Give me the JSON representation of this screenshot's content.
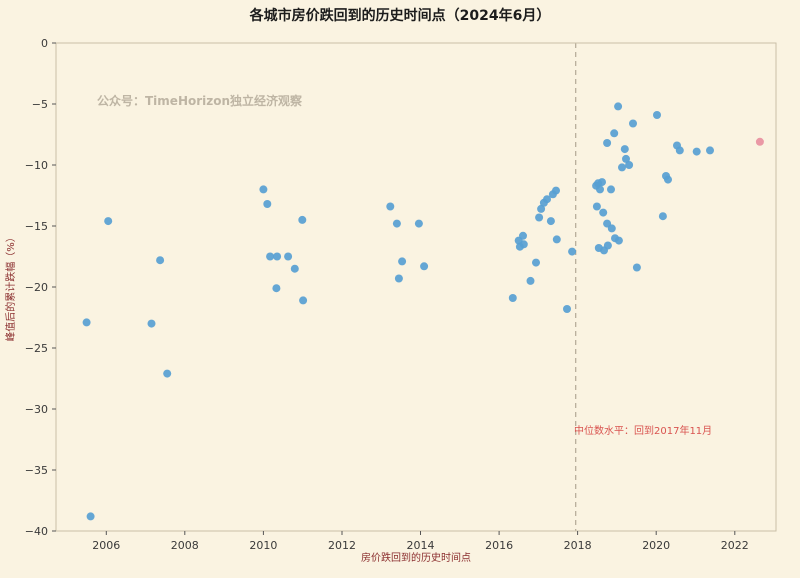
{
  "chart_data": {
    "type": "scatter",
    "title": "各城市房价跌回到的历史时间点（2024年6月）",
    "xlabel": "房价跌回到的历史时间点",
    "ylabel": "峰值后的累计跌幅（%）",
    "watermark": "公众号：TimeHorizon独立经济观察",
    "median_annotation": "中位数水平：回到2017年11月",
    "median_line_x": 2017.95,
    "xlim": [
      2004.72,
      2023.05
    ],
    "ylim": [
      -40,
      0
    ],
    "xticks": [
      2006,
      2008,
      2010,
      2012,
      2014,
      2016,
      2018,
      2020,
      2022
    ],
    "xtick_labels": [
      "2006",
      "2008",
      "2010",
      "2012",
      "2014",
      "2016",
      "2018",
      "2020",
      "2022"
    ],
    "yticks": [
      0,
      -5,
      -10,
      -15,
      -20,
      -25,
      -30,
      -35,
      -40
    ],
    "ytick_labels": [
      "0",
      "−5",
      "−10",
      "−15",
      "−20",
      "−25",
      "−30",
      "−35",
      "−40"
    ],
    "grid": false,
    "legend": "none",
    "colors": {
      "background": "#faf3e1",
      "point_blue": "#57a0d3",
      "point_pink": "#e8909f",
      "median_line": "#b3a996",
      "spine": "#c9bfa8",
      "annotation_red": "#d9534f"
    },
    "series": [
      {
        "name": "cities",
        "color": "#57a0d3",
        "points": [
          [
            2005.5,
            -22.9
          ],
          [
            2005.6,
            -38.8
          ],
          [
            2006.05,
            -14.6
          ],
          [
            2007.15,
            -23.0
          ],
          [
            2007.37,
            -17.8
          ],
          [
            2007.55,
            -27.1
          ],
          [
            2010.0,
            -12.0
          ],
          [
            2010.1,
            -13.2
          ],
          [
            2010.17,
            -17.5
          ],
          [
            2010.33,
            -20.1
          ],
          [
            2010.35,
            -17.5
          ],
          [
            2010.63,
            -17.5
          ],
          [
            2010.8,
            -18.5
          ],
          [
            2010.99,
            -14.5
          ],
          [
            2011.01,
            -21.1
          ],
          [
            2013.23,
            -13.4
          ],
          [
            2013.4,
            -14.8
          ],
          [
            2013.45,
            -19.3
          ],
          [
            2013.53,
            -17.9
          ],
          [
            2013.96,
            -14.8
          ],
          [
            2014.09,
            -18.3
          ],
          [
            2016.35,
            -20.9
          ],
          [
            2016.5,
            -16.2
          ],
          [
            2016.53,
            -16.7
          ],
          [
            2016.61,
            -15.8
          ],
          [
            2016.63,
            -16.5
          ],
          [
            2016.8,
            -19.5
          ],
          [
            2016.94,
            -18.0
          ],
          [
            2017.02,
            -14.3
          ],
          [
            2017.07,
            -13.6
          ],
          [
            2017.14,
            -13.1
          ],
          [
            2017.22,
            -12.8
          ],
          [
            2017.32,
            -14.6
          ],
          [
            2017.37,
            -12.4
          ],
          [
            2017.45,
            -12.1
          ],
          [
            2017.47,
            -16.1
          ],
          [
            2017.73,
            -21.8
          ],
          [
            2017.86,
            -17.1
          ],
          [
            2018.47,
            -11.7
          ],
          [
            2018.49,
            -13.4
          ],
          [
            2018.52,
            -11.5
          ],
          [
            2018.54,
            -16.8
          ],
          [
            2018.57,
            -12.0
          ],
          [
            2018.62,
            -11.4
          ],
          [
            2018.65,
            -13.9
          ],
          [
            2018.67,
            -17.0
          ],
          [
            2018.75,
            -8.2
          ],
          [
            2018.75,
            -14.8
          ],
          [
            2018.77,
            -16.6
          ],
          [
            2018.85,
            -12.0
          ],
          [
            2018.87,
            -15.2
          ],
          [
            2018.93,
            -7.4
          ],
          [
            2018.95,
            -16.0
          ],
          [
            2019.03,
            -5.2
          ],
          [
            2019.05,
            -16.2
          ],
          [
            2019.13,
            -10.2
          ],
          [
            2019.2,
            -8.7
          ],
          [
            2019.23,
            -9.5
          ],
          [
            2019.31,
            -10.0
          ],
          [
            2019.41,
            -6.6
          ],
          [
            2019.51,
            -18.4
          ],
          [
            2020.02,
            -5.9
          ],
          [
            2020.17,
            -14.2
          ],
          [
            2020.25,
            -10.9
          ],
          [
            2020.3,
            -11.2
          ],
          [
            2020.53,
            -8.4
          ],
          [
            2020.6,
            -8.8
          ],
          [
            2021.03,
            -8.9
          ],
          [
            2021.37,
            -8.8
          ]
        ]
      },
      {
        "name": "highlight",
        "color": "#e8909f",
        "points": [
          [
            2022.64,
            -8.1
          ]
        ]
      }
    ]
  }
}
